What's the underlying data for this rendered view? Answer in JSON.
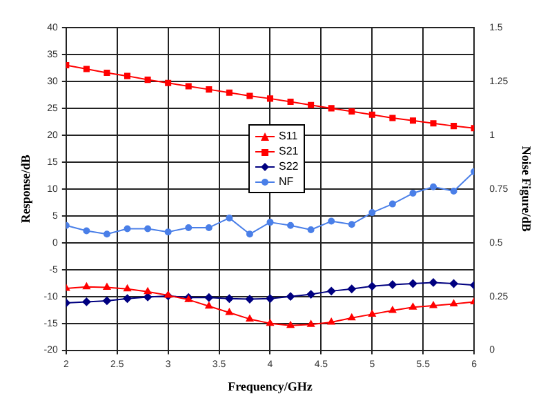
{
  "chart_data": {
    "type": "line",
    "xlabel": "Frequency/GHz",
    "ylabel": "Response/dB",
    "y2label": "Noise Figure/dB",
    "x": [
      2,
      2.2,
      2.4,
      2.6,
      2.8,
      3,
      3.2,
      3.4,
      3.6,
      3.8,
      4,
      4.2,
      4.4,
      4.6,
      4.8,
      5,
      5.2,
      5.4,
      5.6,
      5.8,
      6
    ],
    "series": [
      {
        "name": "S11",
        "color": "#ff0000",
        "marker": "triangle",
        "values": [
          -8.5,
          -8.2,
          -8.3,
          -8.6,
          -9.1,
          -9.8,
          -10.6,
          -11.8,
          -13,
          -14.2,
          -15,
          -15.4,
          -15.2,
          -14.8,
          -14,
          -13.3,
          -12.6,
          -12,
          -11.7,
          -11.4,
          -11
        ]
      },
      {
        "name": "S21",
        "color": "#ff0000",
        "marker": "square",
        "values": [
          33,
          32.3,
          31.6,
          31,
          30.3,
          29.7,
          29.1,
          28.5,
          27.9,
          27.3,
          26.8,
          26.2,
          25.6,
          25,
          24.4,
          23.8,
          23.2,
          22.7,
          22.2,
          21.7,
          21.3
        ]
      },
      {
        "name": "S22",
        "color": "#000080",
        "marker": "diamond",
        "values": [
          -11.2,
          -11,
          -10.8,
          -10.4,
          -10.1,
          -9.9,
          -10.2,
          -10.2,
          -10.4,
          -10.5,
          -10.4,
          -10,
          -9.6,
          -9,
          -8.6,
          -8.1,
          -7.8,
          -7.6,
          -7.4,
          -7.6,
          -7.9
        ]
      },
      {
        "name": "NF",
        "color": "#4a7fe8",
        "marker": "circle",
        "axis": "y2",
        "values": [
          0.58,
          0.555,
          0.54,
          0.565,
          0.565,
          0.55,
          0.57,
          0.57,
          0.615,
          0.54,
          0.595,
          0.58,
          0.56,
          0.6,
          0.585,
          0.64,
          0.68,
          0.73,
          0.76,
          0.74,
          0.83
        ]
      }
    ],
    "xlim": [
      2,
      6
    ],
    "xticks": [
      2,
      2.5,
      3,
      3.5,
      4,
      4.5,
      5,
      5.5,
      6
    ],
    "ylim": [
      -20,
      40
    ],
    "yticks": [
      -20,
      -15,
      -10,
      -5,
      0,
      5,
      10,
      15,
      20,
      25,
      30,
      35,
      40
    ],
    "y2lim": [
      0,
      1.5
    ],
    "y2ticks": [
      0,
      0.25,
      0.5,
      0.75,
      1,
      1.25,
      1.5
    ],
    "grid": true,
    "legend": "center",
    "line_style": "solid"
  }
}
